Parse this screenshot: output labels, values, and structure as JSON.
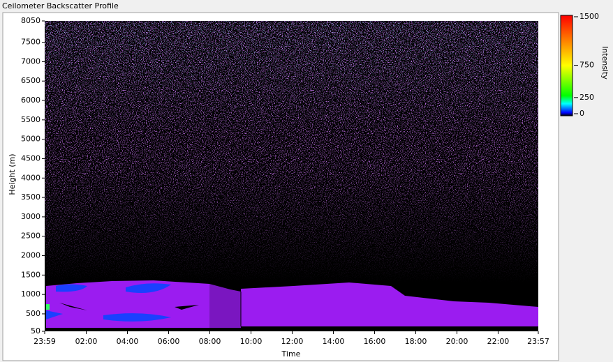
{
  "chart_data": {
    "type": "heatmap",
    "title": "Ceilometer Backscatter Profile",
    "xlabel": "Time",
    "ylabel": "Height (m)",
    "xlim": [
      -1,
      1437
    ],
    "xticks": [
      {
        "value": -1,
        "label": "23:59"
      },
      {
        "value": 120,
        "label": "02:00"
      },
      {
        "value": 240,
        "label": "04:00"
      },
      {
        "value": 360,
        "label": "06:00"
      },
      {
        "value": 480,
        "label": "08:00"
      },
      {
        "value": 600,
        "label": "10:00"
      },
      {
        "value": 720,
        "label": "12:00"
      },
      {
        "value": 840,
        "label": "14:00"
      },
      {
        "value": 960,
        "label": "16:00"
      },
      {
        "value": 1080,
        "label": "18:00"
      },
      {
        "value": 1200,
        "label": "20:00"
      },
      {
        "value": 1320,
        "label": "22:00"
      },
      {
        "value": 1437,
        "label": "23:57"
      }
    ],
    "ylim": [
      50,
      8050
    ],
    "yticks": [
      50,
      500,
      1000,
      1500,
      2000,
      2500,
      3000,
      3500,
      4000,
      4500,
      5000,
      5500,
      6000,
      6500,
      7000,
      7500,
      8050
    ],
    "colorbar": {
      "label": "Intensity",
      "lim": [
        0,
        1500
      ],
      "ticks": [
        0,
        250,
        750,
        1500
      ]
    }
  }
}
